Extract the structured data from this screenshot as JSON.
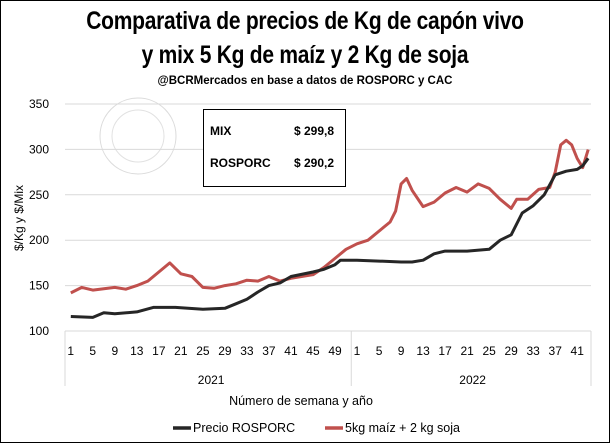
{
  "chart_data": {
    "type": "line",
    "title": "Comparativa de precios de Kg de capón vivo",
    "title2": "y mix 5 Kg de maíz y 2 Kg de soja",
    "subtitle": "@BCRMercados en base a datos de ROSPORC y CAC",
    "xlabel": "Número de semana y año",
    "ylabel": "$/Kg y $/Mix",
    "ylim": [
      100,
      350
    ],
    "yticks": [
      "100",
      "150",
      "200",
      "250",
      "300",
      "350"
    ],
    "groups": [
      {
        "name": "2021",
        "weeks": 52,
        "ticks": [
          "1",
          "5",
          "9",
          "13",
          "17",
          "21",
          "25",
          "29",
          "33",
          "37",
          "41",
          "45",
          "49"
        ]
      },
      {
        "name": "2022",
        "weeks": 43,
        "ticks": [
          "1",
          "5",
          "9",
          "13",
          "17",
          "21",
          "25",
          "29",
          "33",
          "37",
          "41"
        ]
      }
    ],
    "series": [
      {
        "name": "Precio ROSPORC",
        "color": "#262626",
        "points": [
          [
            1,
            116
          ],
          [
            5,
            115
          ],
          [
            7,
            120
          ],
          [
            9,
            119
          ],
          [
            13,
            121
          ],
          [
            16,
            126
          ],
          [
            20,
            126
          ],
          [
            25,
            124
          ],
          [
            29,
            125
          ],
          [
            31,
            130
          ],
          [
            33,
            135
          ],
          [
            35,
            143
          ],
          [
            37,
            150
          ],
          [
            39,
            153
          ],
          [
            41,
            160
          ],
          [
            45,
            165
          ],
          [
            47,
            168
          ],
          [
            49,
            173
          ],
          [
            50,
            178
          ],
          [
            53,
            178
          ],
          [
            57,
            177
          ],
          [
            61,
            176
          ],
          [
            63,
            176
          ],
          [
            65,
            178
          ],
          [
            67,
            185
          ],
          [
            69,
            188
          ],
          [
            73,
            188
          ],
          [
            77,
            190
          ],
          [
            79,
            200
          ],
          [
            81,
            206
          ],
          [
            83,
            230
          ],
          [
            85,
            238
          ],
          [
            87,
            250
          ],
          [
            89,
            272
          ],
          [
            91,
            276
          ],
          [
            93,
            278
          ],
          [
            94,
            282
          ],
          [
            95,
            290.2
          ]
        ]
      },
      {
        "name": "5kg maíz + 2 kg soja",
        "color": "#C0504D",
        "points": [
          [
            1,
            142
          ],
          [
            3,
            148
          ],
          [
            5,
            145
          ],
          [
            9,
            148
          ],
          [
            11,
            146
          ],
          [
            13,
            150
          ],
          [
            15,
            155
          ],
          [
            17,
            165
          ],
          [
            19,
            175
          ],
          [
            21,
            163
          ],
          [
            23,
            160
          ],
          [
            25,
            148
          ],
          [
            27,
            147
          ],
          [
            29,
            150
          ],
          [
            31,
            152
          ],
          [
            33,
            156
          ],
          [
            35,
            155
          ],
          [
            37,
            160
          ],
          [
            39,
            155
          ],
          [
            41,
            158
          ],
          [
            45,
            162
          ],
          [
            47,
            170
          ],
          [
            49,
            180
          ],
          [
            51,
            190
          ],
          [
            53,
            196
          ],
          [
            55,
            200
          ],
          [
            57,
            210
          ],
          [
            59,
            220
          ],
          [
            60,
            232
          ],
          [
            61,
            262
          ],
          [
            62,
            268
          ],
          [
            63,
            255
          ],
          [
            65,
            237
          ],
          [
            67,
            242
          ],
          [
            69,
            252
          ],
          [
            71,
            258
          ],
          [
            73,
            253
          ],
          [
            75,
            262
          ],
          [
            77,
            257
          ],
          [
            79,
            245
          ],
          [
            81,
            235
          ],
          [
            82,
            245
          ],
          [
            84,
            245
          ],
          [
            86,
            256
          ],
          [
            88,
            258
          ],
          [
            89,
            275
          ],
          [
            90,
            305
          ],
          [
            91,
            310
          ],
          [
            92,
            305
          ],
          [
            93,
            290
          ],
          [
            94,
            280
          ],
          [
            95,
            299.8
          ]
        ]
      }
    ],
    "annotation": {
      "rows": [
        {
          "label": "MIX",
          "value": "$ 299,8"
        },
        {
          "label": "ROSPORC",
          "value": "$ 290,2"
        }
      ]
    },
    "legend": "bottom",
    "grid": true,
    "watermark": "BOLSA DE COMERCIO DE ROSARIO"
  }
}
